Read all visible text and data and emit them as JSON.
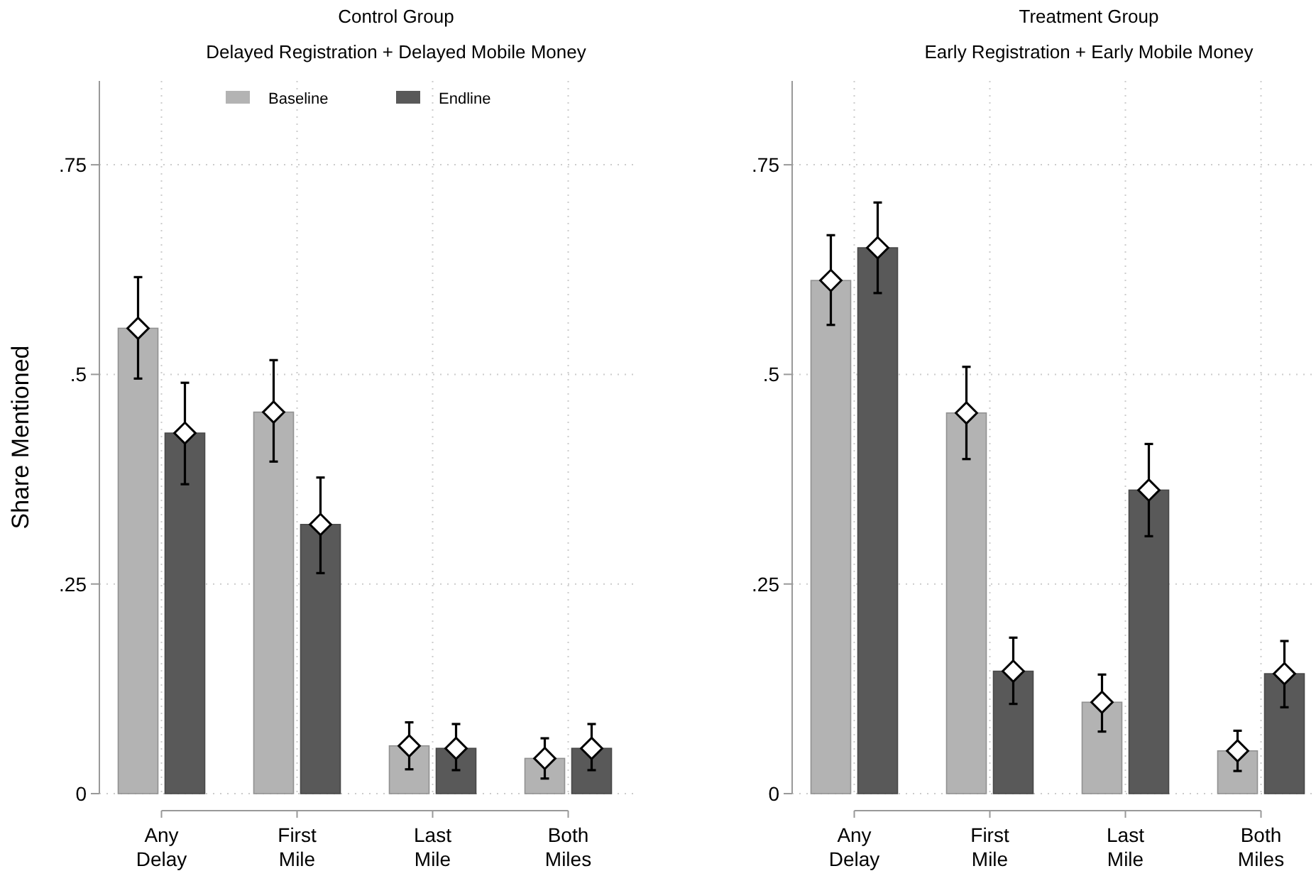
{
  "chart_data": [
    {
      "type": "bar",
      "title": "Control Group",
      "subtitle": "Delayed Registration + Delayed Mobile Money",
      "ylabel": "Share Mentioned",
      "categories": [
        "Any\nDelay",
        "First\nMile",
        "Last\nMile",
        "Both\nMiles"
      ],
      "ylim": [
        0,
        0.85
      ],
      "yticks": [
        {
          "value": 0,
          "label": "0"
        },
        {
          "value": 0.25,
          "label": ".25"
        },
        {
          "value": 0.5,
          "label": ".5"
        },
        {
          "value": 0.75,
          "label": ".75"
        }
      ],
      "grid": true,
      "legend": "top",
      "series": [
        {
          "name": "Baseline",
          "color": "#b3b3b3",
          "values": [
            0.555,
            0.455,
            0.057,
            0.042
          ],
          "errors": [
            [
              0.495,
              0.616
            ],
            [
              0.396,
              0.517
            ],
            [
              0.029,
              0.085
            ],
            [
              0.018,
              0.066
            ]
          ]
        },
        {
          "name": "Endline",
          "color": "#595959",
          "values": [
            0.43,
            0.321,
            0.054,
            0.054
          ],
          "errors": [
            [
              0.369,
              0.49
            ],
            [
              0.263,
              0.377
            ],
            [
              0.028,
              0.083
            ],
            [
              0.028,
              0.083
            ]
          ]
        },
        {
          "type": "scatter",
          "marker": "diamond",
          "color": "#ffffff",
          "x": [
            "Any\nDelay",
            "First\nMile",
            "Last\nMile",
            "Both\nMiles"
          ],
          "values": [
            0.555,
            0.455,
            0.057,
            0.042
          ]
        },
        {
          "type": "scatter",
          "marker": "diamond",
          "color": "#ffffff",
          "x": [
            "Any\nDelay",
            "First\nMile",
            "Last\nMile",
            "Both\nMiles"
          ],
          "values": [
            0.43,
            0.321,
            0.054,
            0.054
          ]
        }
      ]
    },
    {
      "type": "bar",
      "title": "Treatment Group",
      "subtitle": "Early Registration + Early Mobile Money",
      "categories": [
        "Any\nDelay",
        "First\nMile",
        "Last\nMile",
        "Both\nMiles"
      ],
      "ylim": [
        0,
        0.85
      ],
      "yticks": [
        {
          "value": 0,
          "label": "0"
        },
        {
          "value": 0.25,
          "label": ".25"
        },
        {
          "value": 0.5,
          "label": ".5"
        },
        {
          "value": 0.75,
          "label": ".75"
        }
      ],
      "grid": true,
      "series": [
        {
          "color": "#b3b3b3",
          "values": [
            0.612,
            0.454,
            0.109,
            0.051
          ],
          "errors": [
            [
              0.559,
              0.666
            ],
            [
              0.399,
              0.509
            ],
            [
              0.074,
              0.142
            ],
            [
              0.027,
              0.075
            ]
          ]
        },
        {
          "color": "#595959",
          "values": [
            0.651,
            0.146,
            0.362,
            0.143
          ],
          "errors": [
            [
              0.597,
              0.705
            ],
            [
              0.107,
              0.186
            ],
            [
              0.307,
              0.417
            ],
            [
              0.103,
              0.182
            ]
          ]
        },
        {
          "type": "scatter",
          "marker": "diamond",
          "color": "#ffffff",
          "x": [
            "Any\nDelay",
            "First\nMile",
            "Last\nMile",
            "Both\nMiles"
          ],
          "values": [
            0.612,
            0.454,
            0.109,
            0.051
          ]
        },
        {
          "type": "scatter",
          "marker": "diamond",
          "color": "#ffffff",
          "x": [
            "Any\nDelay",
            "First\nMile",
            "Last\nMile",
            "Both\nMiles"
          ],
          "values": [
            0.651,
            0.146,
            0.362,
            0.143
          ]
        }
      ]
    }
  ]
}
